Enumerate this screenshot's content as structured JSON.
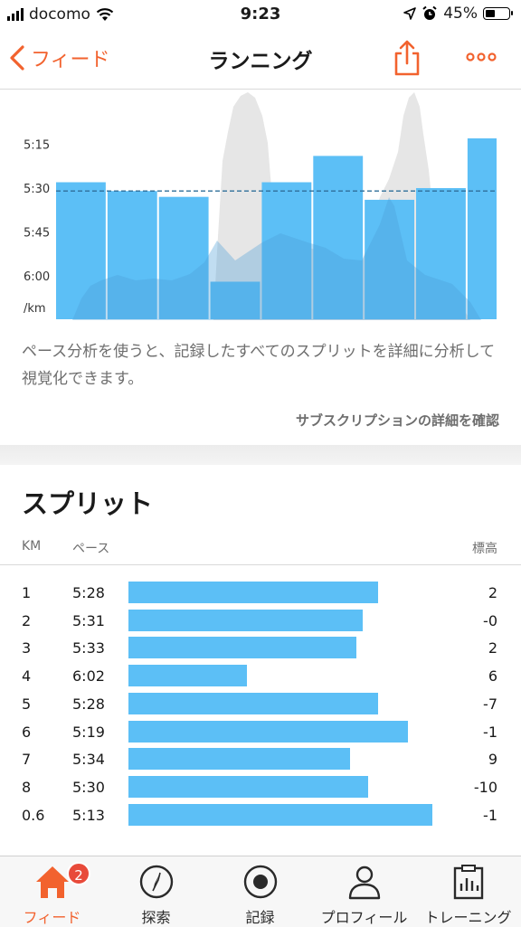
{
  "status_bar": {
    "carrier": "docomo",
    "time": "9:23",
    "battery": "45%",
    "battery_level": 0.45
  },
  "nav": {
    "back_label": "フィード",
    "title": "ランニング"
  },
  "chart_data": {
    "type": "bar",
    "categories": [
      "1",
      "2",
      "3",
      "4",
      "5",
      "6",
      "7",
      "8",
      "0.6"
    ],
    "values": [
      "5:28",
      "5:31",
      "5:33",
      "6:02",
      "5:28",
      "5:19",
      "5:34",
      "5:30",
      "5:13"
    ],
    "values_seconds": [
      328,
      331,
      333,
      362,
      328,
      319,
      334,
      330,
      313
    ],
    "widths_km": [
      1,
      1,
      1,
      1,
      1,
      1,
      1,
      1,
      0.6
    ],
    "y_tick_labels": [
      "5:15",
      "5:30",
      "5:45",
      "6:00",
      "/km"
    ],
    "y_ticks_seconds": [
      315,
      330,
      345,
      360
    ],
    "average_line_seconds": 331,
    "y_inverted": true,
    "colors": {
      "bar": "#5cbff6",
      "average_line": "#2f6f9a",
      "elevation": "#e6e6e6"
    }
  },
  "pace_note": "ペース分析を使うと、記録したすべてのスプリットを詳細に分析して視覚化できます。",
  "subscription_link": "サブスクリプションの詳細を確認",
  "splits": {
    "title": "スプリット",
    "headers": {
      "km": "KM",
      "pace": "ペース",
      "elev": "標高"
    },
    "rows": [
      {
        "km": "1",
        "pace": "5:28",
        "elev": "2"
      },
      {
        "km": "2",
        "pace": "5:31",
        "elev": "-0"
      },
      {
        "km": "3",
        "pace": "5:33",
        "elev": "2"
      },
      {
        "km": "4",
        "pace": "6:02",
        "elev": "6"
      },
      {
        "km": "5",
        "pace": "5:28",
        "elev": "-7"
      },
      {
        "km": "6",
        "pace": "5:19",
        "elev": "-1"
      },
      {
        "km": "7",
        "pace": "5:34",
        "elev": "9"
      },
      {
        "km": "8",
        "pace": "5:30",
        "elev": "-10"
      },
      {
        "km": "0.6",
        "pace": "5:13",
        "elev": "-1"
      }
    ],
    "speed_fraction": [
      0.82,
      0.77,
      0.75,
      0.39,
      0.82,
      0.92,
      0.73,
      0.79,
      1.0
    ]
  },
  "tabs": [
    {
      "label": "フィード",
      "icon": "home-icon",
      "active": true,
      "badge": "2"
    },
    {
      "label": "探索",
      "icon": "compass-icon"
    },
    {
      "label": "記録",
      "icon": "record-icon"
    },
    {
      "label": "プロフィール",
      "icon": "profile-icon"
    },
    {
      "label": "トレーニング",
      "icon": "training-log-icon"
    }
  ],
  "colors": {
    "accent": "#f2622e",
    "bar": "#5cbff6",
    "badge": "#e84a3a"
  }
}
